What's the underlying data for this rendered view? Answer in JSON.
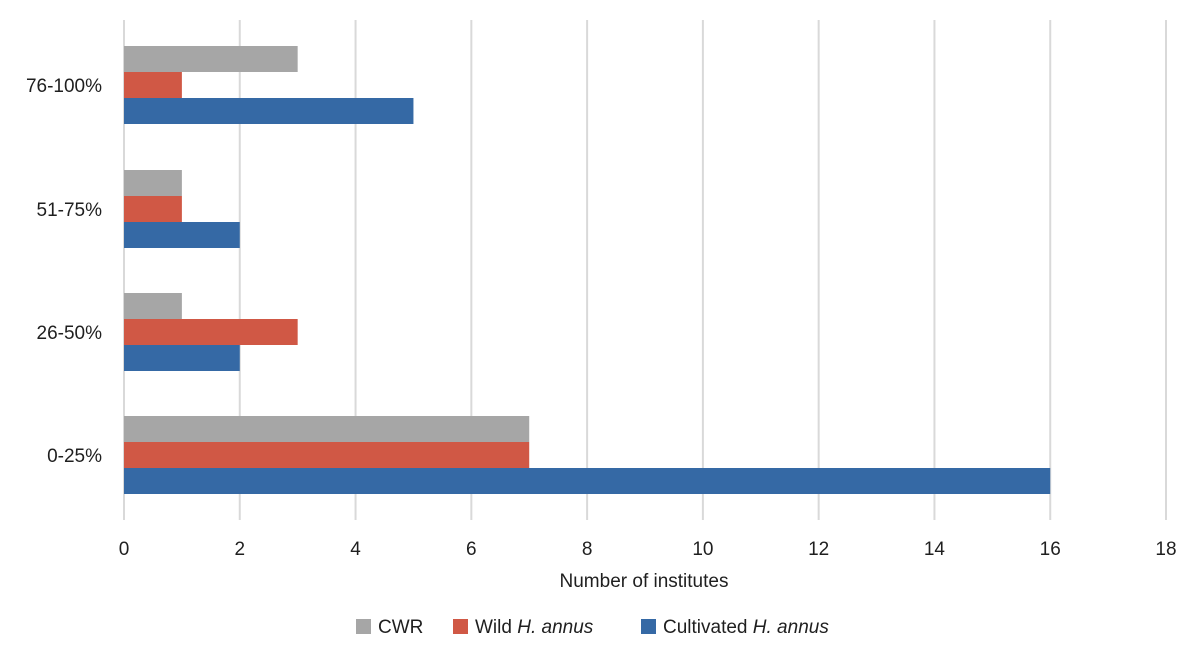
{
  "chart_data": {
    "type": "bar",
    "orientation": "horizontal",
    "categories": [
      "0-25%",
      "26-50%",
      "51-75%",
      "76-100%"
    ],
    "series": [
      {
        "name": "CWR",
        "values": [
          7,
          1,
          1,
          3
        ],
        "color": "#a6a6a6"
      },
      {
        "name": "Wild H. annus",
        "name_parts": [
          "Wild ",
          "H. annus"
        ],
        "values": [
          7,
          3,
          1,
          1
        ],
        "color": "#d05845"
      },
      {
        "name": "Cultivated H. annus",
        "name_parts": [
          "Cultivated ",
          "H. annus"
        ],
        "values": [
          16,
          2,
          2,
          5
        ],
        "color": "#3569a5"
      }
    ],
    "xlabel": "Number of institutes",
    "ylabel": "",
    "xlim": [
      0,
      18
    ],
    "xticks": [
      "0",
      "2",
      "4",
      "6",
      "8",
      "10",
      "12",
      "14",
      "16",
      "18"
    ],
    "grid": "vertical",
    "legend_position": "bottom"
  }
}
